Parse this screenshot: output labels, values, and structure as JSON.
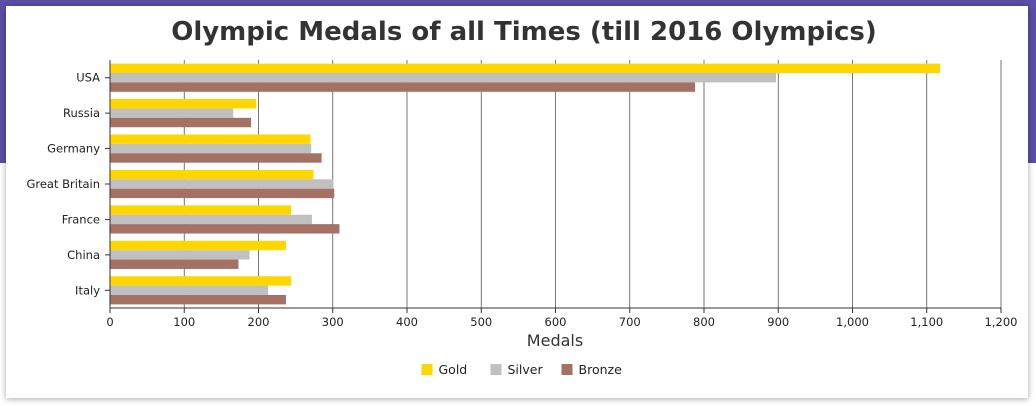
{
  "chart_data": {
    "type": "bar",
    "orientation": "horizontal",
    "title": "Olympic Medals of all Times (till 2016 Olympics)",
    "xlabel": "Medals",
    "ylabel": "",
    "categories": [
      "USA",
      "Russia",
      "Germany",
      "Great Britain",
      "France",
      "China",
      "Italy"
    ],
    "series": [
      {
        "name": "Gold",
        "color": "#ffd700",
        "values": [
          1118,
          197,
          270,
          274,
          244,
          237,
          244
        ]
      },
      {
        "name": "Silver",
        "color": "#c0c0c0",
        "values": [
          897,
          166,
          271,
          301,
          272,
          188,
          213
        ]
      },
      {
        "name": "Bronze",
        "color": "#a57164",
        "values": [
          788,
          190,
          285,
          302,
          309,
          173,
          237
        ]
      }
    ],
    "xlim": [
      0,
      1200
    ],
    "xticks": [
      0,
      100,
      200,
      300,
      400,
      500,
      600,
      700,
      800,
      900,
      1000,
      1100,
      1200
    ],
    "xtick_labels": [
      "0",
      "100",
      "200",
      "300",
      "400",
      "500",
      "600",
      "700",
      "800",
      "900",
      "1,000",
      "1,100",
      "1,200"
    ],
    "grid": true,
    "legend_position": "bottom"
  }
}
